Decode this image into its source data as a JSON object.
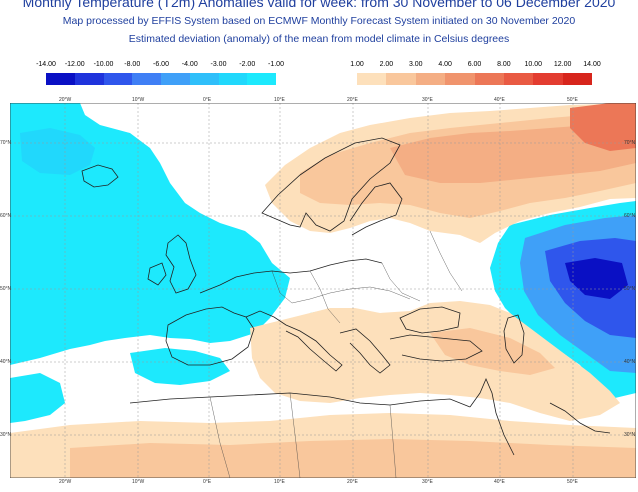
{
  "header": {
    "title": "Monthly Temperature (T2m) Anomalies valid for week: from 30 November to 06 December 2020",
    "subtitle": "Map processed by EFFIS System based on ECMWF Monthly Forecast System initiated on 30 November 2020",
    "description": "Estimated deviation (anomaly) of the mean from model climate in Celsius degrees"
  },
  "legend": {
    "negative": {
      "labels": [
        "-14.00",
        "-12.00",
        "-10.00",
        "-8.00",
        "-6.00",
        "-4.00",
        "-3.00",
        "-2.00",
        "-1.00"
      ],
      "colors": [
        "#0a10c4",
        "#1f33dc",
        "#2f56ec",
        "#3f7ff5",
        "#3fa0f8",
        "#2fbffa",
        "#21d8fc",
        "#1de9fd"
      ]
    },
    "positive": {
      "labels": [
        "1.00",
        "2.00",
        "3.00",
        "4.00",
        "6.00",
        "8.00",
        "10.00",
        "12.00",
        "14.00"
      ],
      "colors": [
        "#fde0bb",
        "#f9c79c",
        "#f4ae84",
        "#f0946d",
        "#ec7757",
        "#e95a43",
        "#e33c30",
        "#d7251c"
      ]
    }
  },
  "map": {
    "lon_labels_top": [
      "20°W",
      "10°W",
      "0°E",
      "10°E",
      "20°E",
      "30°E",
      "40°E",
      "50°E"
    ],
    "lon_labels_bottom": [
      "20°W",
      "10°W",
      "0°E",
      "10°E",
      "20°E",
      "30°E",
      "40°E",
      "50°E"
    ],
    "lat_labels_left": [
      "70°N",
      "60°N",
      "50°N",
      "40°N",
      "30°N"
    ],
    "lat_labels_right": [
      "70°N",
      "60°N",
      "50°N",
      "40°N",
      "30°N"
    ],
    "colors": {
      "cold_light": "#1de9fd",
      "cold_mid": "#3fa0f8",
      "cold_deep": "#1f33dc",
      "warm_light": "#fde0bb",
      "warm_mid": "#f4ae84",
      "warm_strong": "#ec7757",
      "coast": "#222222",
      "grid": "#999999"
    }
  }
}
